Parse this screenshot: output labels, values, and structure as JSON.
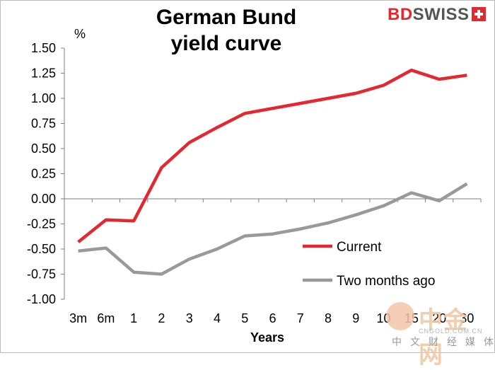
{
  "logo": {
    "text_a": "BD",
    "text_b": "SWISS"
  },
  "watermark": {
    "big": "中金网",
    "url": "CNGOLD.COM.CN",
    "sub": "中文财经媒体"
  },
  "chart_data": {
    "type": "line",
    "title_line1": "German Bund",
    "title_line2": "yield curve",
    "ylabel": "%",
    "xlabel": "Years",
    "categories": [
      "3m",
      "6m",
      "1",
      "2",
      "3",
      "4",
      "5",
      "6",
      "7",
      "8",
      "9",
      "10",
      "15",
      "20",
      "30"
    ],
    "ylim": [
      -1.0,
      1.5
    ],
    "yticks": [
      "1.50",
      "1.25",
      "1.00",
      "0.75",
      "0.50",
      "0.25",
      "0.00",
      "-0.25",
      "-0.50",
      "-0.75",
      "-1.00"
    ],
    "ytick_values": [
      1.5,
      1.25,
      1.0,
      0.75,
      0.5,
      0.25,
      0.0,
      -0.25,
      -0.5,
      -0.75,
      -1.0
    ],
    "grid": false,
    "legend_position": "bottom-right",
    "series": [
      {
        "name": "Current",
        "color": "#e3282f",
        "values": [
          -0.43,
          -0.21,
          -0.22,
          0.31,
          0.56,
          0.71,
          0.85,
          0.9,
          0.95,
          1.0,
          1.05,
          1.13,
          1.28,
          1.19,
          1.23
        ]
      },
      {
        "name": "Two months ago",
        "color": "#999999",
        "values": [
          -0.52,
          -0.49,
          -0.73,
          -0.75,
          -0.6,
          -0.5,
          -0.37,
          -0.35,
          -0.3,
          -0.24,
          -0.16,
          -0.07,
          0.06,
          -0.02,
          0.15
        ]
      }
    ]
  }
}
